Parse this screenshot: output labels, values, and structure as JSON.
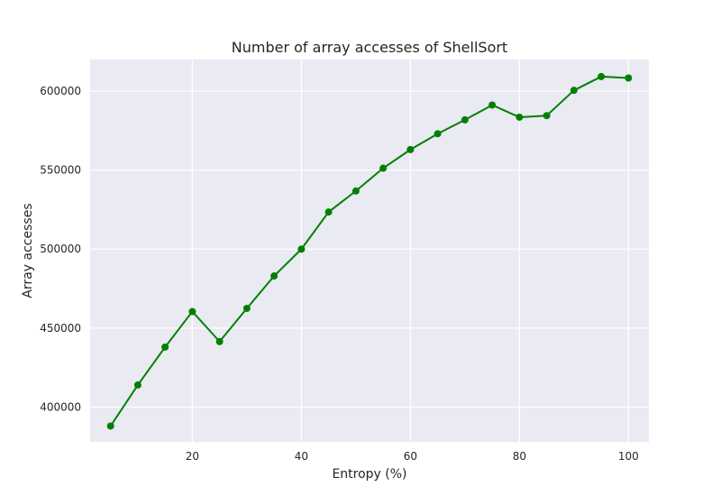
{
  "chart_data": {
    "type": "line",
    "title": "Number of array accesses of ShellSort",
    "xlabel": "Entropy (%)",
    "ylabel": "Array accesses",
    "xlim": [
      1.25,
      103.75
    ],
    "ylim": [
      378000,
      620000
    ],
    "xticks": [
      20,
      40,
      60,
      80,
      100
    ],
    "yticks": [
      400000,
      450000,
      500000,
      550000,
      600000
    ],
    "grid": true,
    "legend": "none",
    "series": [
      {
        "color": "#008000",
        "x": [
          5,
          10,
          15,
          20,
          25,
          30,
          35,
          40,
          45,
          50,
          55,
          60,
          65,
          70,
          75,
          80,
          85,
          90,
          95,
          100
        ],
        "y": [
          388000,
          414000,
          438000,
          460500,
          441500,
          462500,
          483000,
          500000,
          523500,
          536800,
          551200,
          563000,
          573000,
          581800,
          591200,
          583500,
          584500,
          600500,
          609200,
          608300
        ]
      }
    ],
    "background_color": "#eaeaf2",
    "grid_color": "#ffffff"
  }
}
